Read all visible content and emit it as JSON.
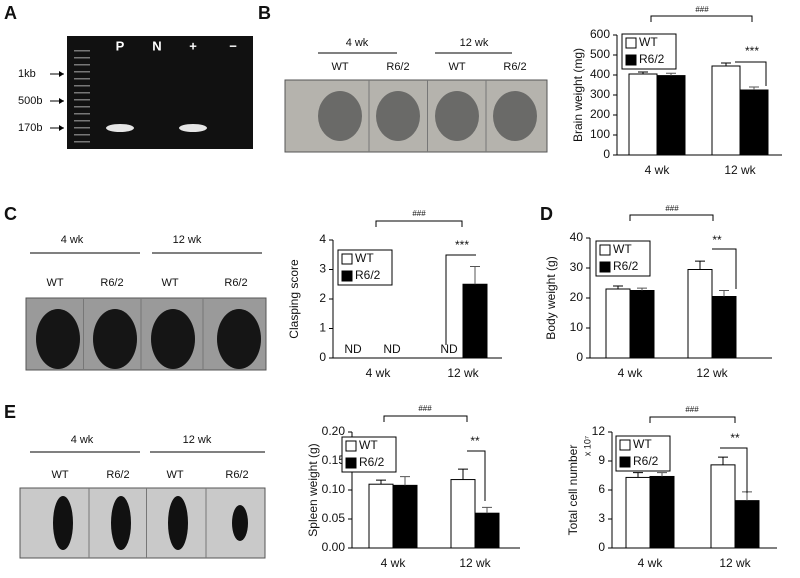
{
  "panel_letters": [
    "A",
    "B",
    "C",
    "D",
    "E"
  ],
  "gel": {
    "lanes": [
      "P",
      "N",
      "+",
      "−"
    ],
    "markers": [
      "1kb",
      "500b",
      "170b"
    ]
  },
  "photos": [
    {
      "groups": [
        "4 wk",
        "12 wk"
      ],
      "columns": [
        "WT",
        "R6/2",
        "WT",
        "R6/2"
      ]
    },
    {
      "groups": [
        "4 wk",
        "12 wk"
      ],
      "columns": [
        "WT",
        "R6/2",
        "WT",
        "R6/2"
      ]
    },
    {
      "groups": [
        "4 wk",
        "12 wk"
      ],
      "columns": [
        "WT",
        "R6/2",
        "WT",
        "R6/2"
      ]
    }
  ],
  "chart_data": [
    {
      "type": "bar",
      "y_label": "Brain weight (mg)",
      "categories": [
        "4 wk",
        "12 wk"
      ],
      "series": [
        {
          "name": "WT",
          "color": "#ffffff",
          "values": [
            405,
            445
          ],
          "errors": [
            10,
            15
          ]
        },
        {
          "name": "R6/2",
          "color": "#000000",
          "values": [
            397,
            325
          ],
          "errors": [
            12,
            15
          ]
        }
      ],
      "ylim": [
        0,
        600
      ],
      "yticks": [
        0,
        100,
        200,
        300,
        400,
        500,
        600
      ],
      "annotations": [
        "###",
        "***"
      ]
    },
    {
      "type": "bar",
      "y_label": "Clasping score",
      "categories": [
        "4 wk",
        "12 wk"
      ],
      "series": [
        {
          "name": "WT",
          "color": "#ffffff",
          "values": [
            null,
            null
          ],
          "errors": [
            null,
            null
          ]
        },
        {
          "name": "R6/2",
          "color": "#000000",
          "values": [
            null,
            2.5
          ],
          "errors": [
            null,
            0.6
          ]
        }
      ],
      "ylim": [
        0,
        4
      ],
      "yticks": [
        0,
        1,
        2,
        3,
        4
      ],
      "nd_labels": [
        "ND",
        "ND",
        "ND"
      ],
      "annotations": [
        "###",
        "***"
      ]
    },
    {
      "type": "bar",
      "y_label": "Body weight (g)",
      "categories": [
        "4 wk",
        "12 wk"
      ],
      "series": [
        {
          "name": "WT",
          "color": "#ffffff",
          "values": [
            23,
            29.5
          ],
          "errors": [
            1,
            2.8
          ]
        },
        {
          "name": "R6/2",
          "color": "#000000",
          "values": [
            22.5,
            20.5
          ],
          "errors": [
            0.8,
            2
          ]
        }
      ],
      "ylim": [
        0,
        40
      ],
      "yticks": [
        0,
        10,
        20,
        30,
        40
      ],
      "annotations": [
        "###",
        "**"
      ]
    },
    {
      "type": "bar",
      "y_label": "Spleen weight (g)",
      "categories": [
        "4 wk",
        "12 wk"
      ],
      "series": [
        {
          "name": "WT",
          "color": "#ffffff",
          "values": [
            0.11,
            0.118
          ],
          "errors": [
            0.007,
            0.018
          ]
        },
        {
          "name": "R6/2",
          "color": "#000000",
          "values": [
            0.108,
            0.06
          ],
          "errors": [
            0.015,
            0.01
          ]
        }
      ],
      "ylim": [
        0,
        0.2
      ],
      "yticks": [
        {
          "value": 0,
          "label": "0.00"
        },
        {
          "value": 0.05,
          "label": "0.05"
        },
        {
          "value": 0.1,
          "label": "0.10"
        },
        {
          "value": 0.15,
          "label": "0.15"
        },
        {
          "value": 0.2,
          "label": "0.20"
        }
      ],
      "annotations": [
        "###",
        "**"
      ]
    },
    {
      "type": "bar",
      "y_label": "Total cell number",
      "y_multiplier": "x 10⁷",
      "categories": [
        "4 wk",
        "12 wk"
      ],
      "series": [
        {
          "name": "WT",
          "color": "#ffffff",
          "values": [
            7.3,
            8.6
          ],
          "errors": [
            0.5,
            0.8
          ]
        },
        {
          "name": "R6/2",
          "color": "#000000",
          "values": [
            7.4,
            4.9
          ],
          "errors": [
            0.4,
            0.9
          ]
        }
      ],
      "ylim": [
        0,
        12
      ],
      "yticks": [
        0,
        3,
        6,
        9,
        12
      ],
      "annotations": [
        "###",
        "**"
      ]
    }
  ]
}
